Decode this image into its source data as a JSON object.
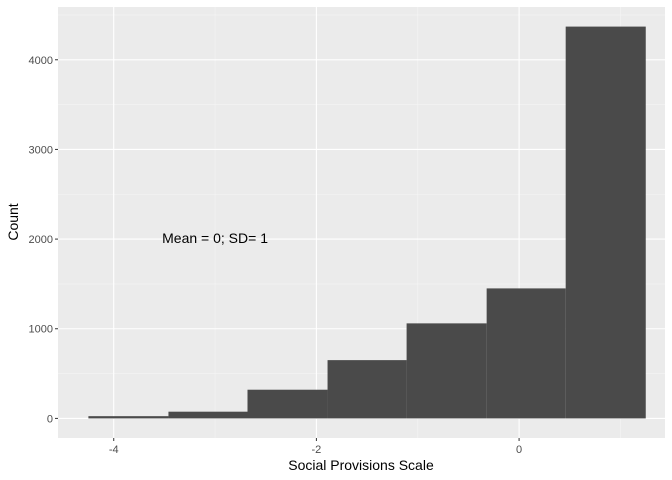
{
  "chart_data": {
    "type": "bar",
    "subtype": "histogram",
    "title": "",
    "xlabel": "Social Provisions Scale",
    "ylabel": "Count",
    "bins": [
      {
        "x0": -4.25,
        "x1": -3.46,
        "count": 25
      },
      {
        "x0": -3.46,
        "x1": -2.68,
        "count": 75
      },
      {
        "x0": -2.68,
        "x1": -1.89,
        "count": 320
      },
      {
        "x0": -1.89,
        "x1": -1.11,
        "count": 650
      },
      {
        "x0": -1.11,
        "x1": -0.32,
        "count": 1060
      },
      {
        "x0": -0.32,
        "x1": 0.46,
        "count": 1450
      },
      {
        "x0": 0.46,
        "x1": 1.25,
        "count": 4370
      }
    ],
    "xlim": [
      -4.55,
      1.44
    ],
    "ylim": [
      -218.5,
      4588.5
    ],
    "x_ticks": [
      {
        "value": -4,
        "label": "-4"
      },
      {
        "value": -2,
        "label": "-2"
      },
      {
        "value": 0,
        "label": "0"
      }
    ],
    "y_ticks": [
      {
        "value": 0,
        "label": "0"
      },
      {
        "value": 1000,
        "label": "1000"
      },
      {
        "value": 2000,
        "label": "2000"
      },
      {
        "value": 3000,
        "label": "3000"
      },
      {
        "value": 4000,
        "label": "4000"
      }
    ],
    "annotation": {
      "text": "Mean = 0; SD= 1",
      "x": -3.0,
      "y": 2000
    },
    "grid": true,
    "legend": "none",
    "colors": {
      "panel_background": "#ebebeb",
      "grid_major": "#ffffff",
      "grid_minor": "#f5f5f5",
      "bar_fill": "#4a4a4a",
      "tick_label": "#4d4d4d",
      "axis_title": "#000000"
    }
  }
}
